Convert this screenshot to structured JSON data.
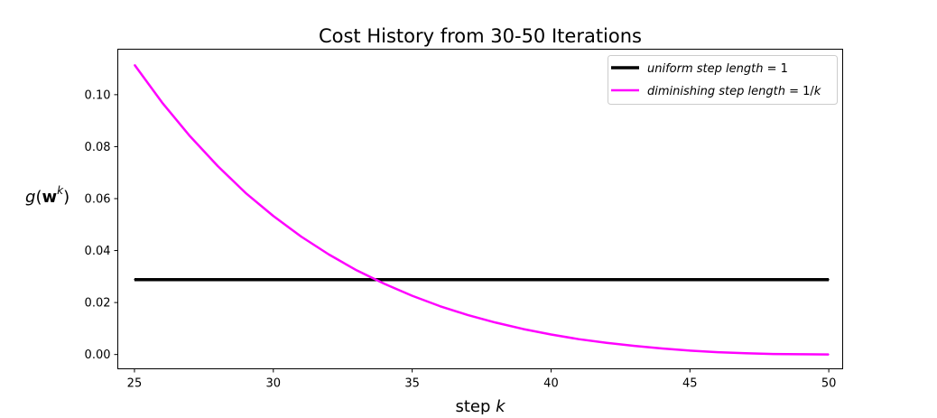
{
  "chart_data": {
    "type": "line",
    "title": "Cost History from 30-50 Iterations",
    "xlabel": {
      "prefix": "step ",
      "var": "k"
    },
    "ylabel": {
      "g": "g",
      "w": "w",
      "sup": "k"
    },
    "xlim": [
      24.4,
      50.5
    ],
    "ylim": [
      -0.0055,
      0.1175
    ],
    "xticks": [
      25,
      30,
      35,
      40,
      45,
      50
    ],
    "xtick_labels": [
      "25",
      "30",
      "35",
      "40",
      "45",
      "50"
    ],
    "yticks": [
      0.0,
      0.02,
      0.04,
      0.06,
      0.08,
      0.1
    ],
    "ytick_labels": [
      "0.00",
      "0.02",
      "0.04",
      "0.06",
      "0.08",
      "0.10"
    ],
    "legend_position": "top-right",
    "grid": false,
    "series": [
      {
        "name": "uniform step length = 1",
        "legend": {
          "main": "uniform step length",
          "eq": " = 1"
        },
        "color": "#000000",
        "line_width": 3.5,
        "x": [
          25,
          26,
          27,
          28,
          29,
          30,
          31,
          32,
          33,
          34,
          35,
          36,
          37,
          38,
          39,
          40,
          41,
          42,
          43,
          44,
          45,
          46,
          47,
          48,
          49,
          50
        ],
        "y": [
          0.0288,
          0.0288,
          0.0288,
          0.0288,
          0.0288,
          0.0288,
          0.0288,
          0.0288,
          0.0288,
          0.0288,
          0.0288,
          0.0288,
          0.0288,
          0.0288,
          0.0288,
          0.0288,
          0.0288,
          0.0288,
          0.0288,
          0.0288,
          0.0288,
          0.0288,
          0.0288,
          0.0288,
          0.0288,
          0.0288
        ]
      },
      {
        "name": "diminishing step length = 1/k",
        "legend": {
          "main": "diminishing step length",
          "eq": " = 1/",
          "var": "k"
        },
        "color": "#ff00ff",
        "line_width": 2.5,
        "x": [
          25,
          26,
          27,
          28,
          29,
          30,
          31,
          32,
          33,
          34,
          35,
          36,
          37,
          38,
          39,
          40,
          41,
          42,
          43,
          44,
          45,
          46,
          47,
          48,
          49,
          50
        ],
        "y": [
          0.1115,
          0.0969,
          0.084,
          0.0725,
          0.0622,
          0.0533,
          0.0454,
          0.0385,
          0.0324,
          0.0272,
          0.0226,
          0.0186,
          0.0152,
          0.0123,
          0.0098,
          0.0077,
          0.0059,
          0.0045,
          0.0033,
          0.0023,
          0.0015,
          0.0009,
          0.0005,
          0.0002,
          0.0001,
          0.0
        ]
      }
    ]
  }
}
